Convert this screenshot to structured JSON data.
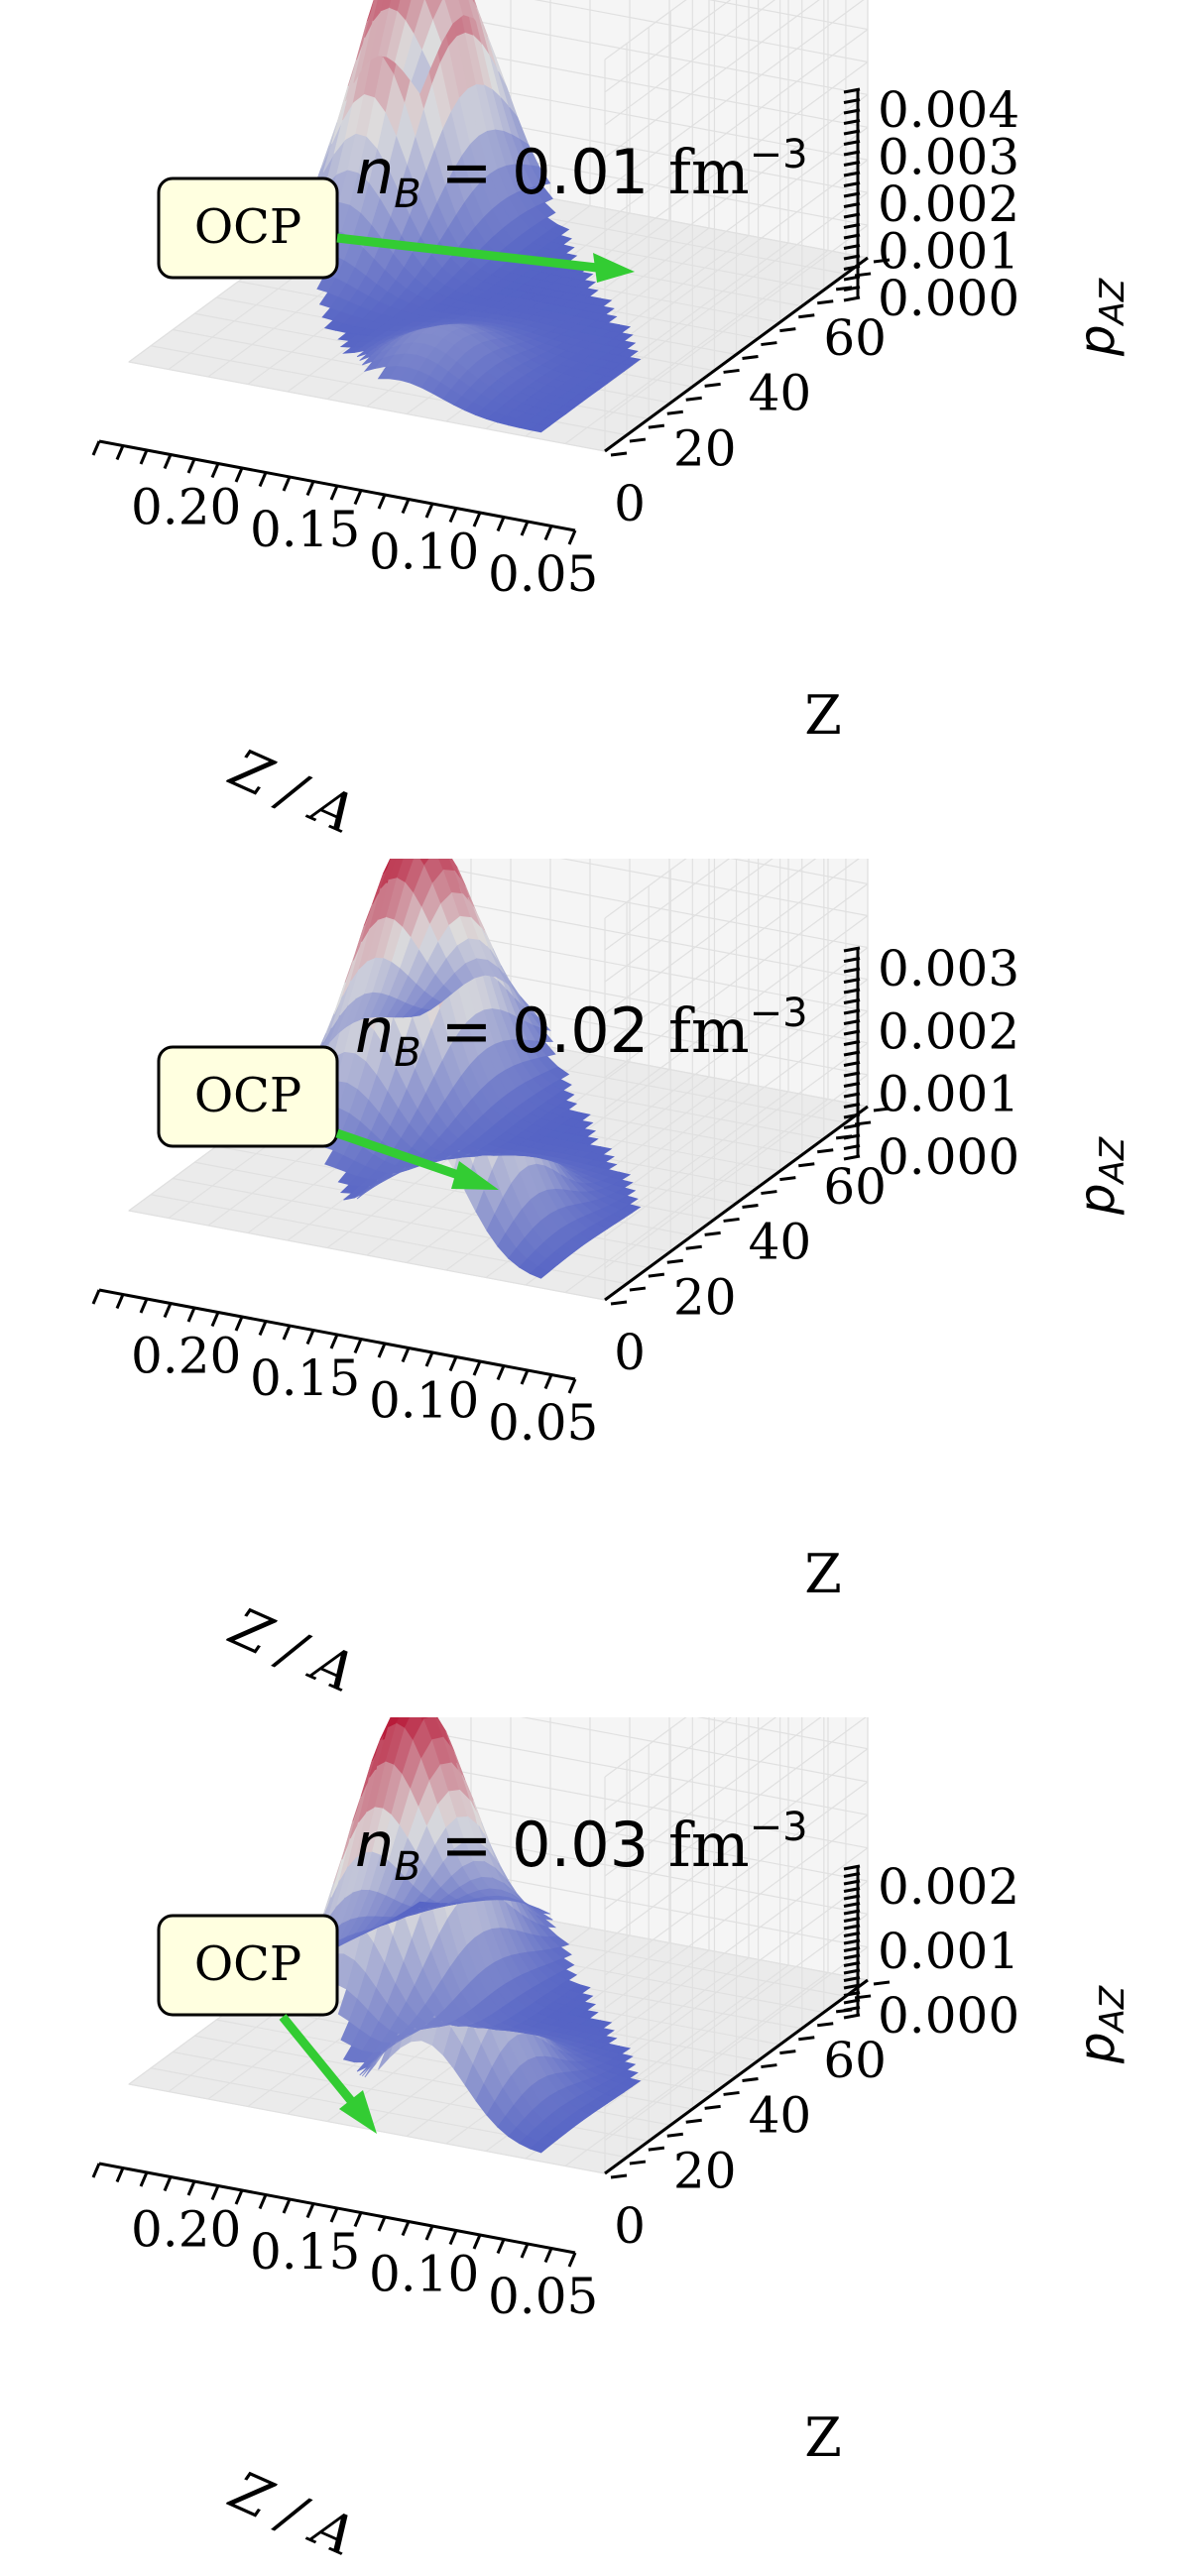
{
  "colors": {
    "surface_low": "#3b4cc0",
    "surface_mid": "#dddddd",
    "surface_high": "#b40426",
    "pane": "#f2f2f2",
    "grid": "#e0e0e0",
    "arrow": "#33cc33",
    "annotation_box": "#ffffe0"
  },
  "chart_data": [
    {
      "type": "surface3d",
      "title": "n_B = 0.01 fm^-3",
      "title_parts": {
        "symbol": "n",
        "sub": "B",
        "eq": " = 0.01 ",
        "unit": "fm",
        "sup": "−3"
      },
      "xlabel": "Z / A",
      "ylabel": "Z",
      "zlabel": "p_AZ",
      "zlabel_parts": {
        "symbol": "p",
        "sub": "AZ"
      },
      "xlim": [
        0.03,
        0.23
      ],
      "ylim": [
        0,
        70
      ],
      "zlim": [
        0,
        0.0041
      ],
      "xticks": [
        "0.05",
        "0.10",
        "0.15",
        "0.20"
      ],
      "yticks": [
        "0",
        "20",
        "40",
        "60"
      ],
      "zticks": [
        "0.000",
        "0.001",
        "0.002",
        "0.003",
        "0.004"
      ],
      "ztick_values": [
        0,
        0.001,
        0.002,
        0.003,
        0.004
      ],
      "colormap": "coolwarm",
      "peaks": [
        {
          "label": "",
          "x": 0.12,
          "y": 12,
          "z": 0.0005
        },
        {
          "label": "OCP",
          "x": 0.195,
          "y": 55,
          "z": 0.0033
        }
      ],
      "annotation": {
        "text": "OCP",
        "target": "OCP peak"
      }
    },
    {
      "type": "surface3d",
      "title": "n_B = 0.02 fm^-3",
      "title_parts": {
        "symbol": "n",
        "sub": "B",
        "eq": " = 0.02 ",
        "unit": "fm",
        "sup": "−3"
      },
      "xlabel": "Z / A",
      "ylabel": "Z",
      "zlabel": "p_AZ",
      "zlabel_parts": {
        "symbol": "p",
        "sub": "AZ"
      },
      "xlim": [
        0.03,
        0.23
      ],
      "ylim": [
        0,
        70
      ],
      "zlim": [
        0,
        0.0031
      ],
      "xticks": [
        "0.05",
        "0.10",
        "0.15",
        "0.20"
      ],
      "yticks": [
        "0",
        "20",
        "40",
        "60"
      ],
      "zticks": [
        "0.000",
        "0.001",
        "0.002",
        "0.003"
      ],
      "ztick_values": [
        0,
        0.001,
        0.002,
        0.003
      ],
      "colormap": "coolwarm",
      "peaks": [
        {
          "label": "",
          "x": 0.11,
          "y": 12,
          "z": 0.0019
        },
        {
          "label": "OCP",
          "x": 0.185,
          "y": 48,
          "z": 0.0022
        }
      ],
      "annotation": {
        "text": "OCP",
        "target": "OCP peak"
      }
    },
    {
      "type": "surface3d",
      "title": "n_B = 0.03 fm^-3",
      "title_parts": {
        "symbol": "n",
        "sub": "B",
        "eq": " = 0.03 ",
        "unit": "fm",
        "sup": "−3"
      },
      "xlabel": "Z / A",
      "ylabel": "Z",
      "zlabel": "p_AZ",
      "zlabel_parts": {
        "symbol": "p",
        "sub": "AZ"
      },
      "xlim": [
        0.03,
        0.23
      ],
      "ylim": [
        0,
        70
      ],
      "zlim": [
        0,
        0.0021
      ],
      "xticks": [
        "0.05",
        "0.10",
        "0.15",
        "0.20"
      ],
      "yticks": [
        "0",
        "20",
        "40",
        "60"
      ],
      "zticks": [
        "0.000",
        "0.001",
        "0.002"
      ],
      "ztick_values": [
        0,
        0.001,
        0.002
      ],
      "colormap": "coolwarm",
      "peaks": [
        {
          "label": "",
          "x": 0.11,
          "y": 12,
          "z": 0.0009
        },
        {
          "label": "OCP",
          "x": 0.175,
          "y": 40,
          "z": 0.0016
        }
      ],
      "annotation": {
        "text": "OCP",
        "target": "OCP peak"
      }
    }
  ]
}
